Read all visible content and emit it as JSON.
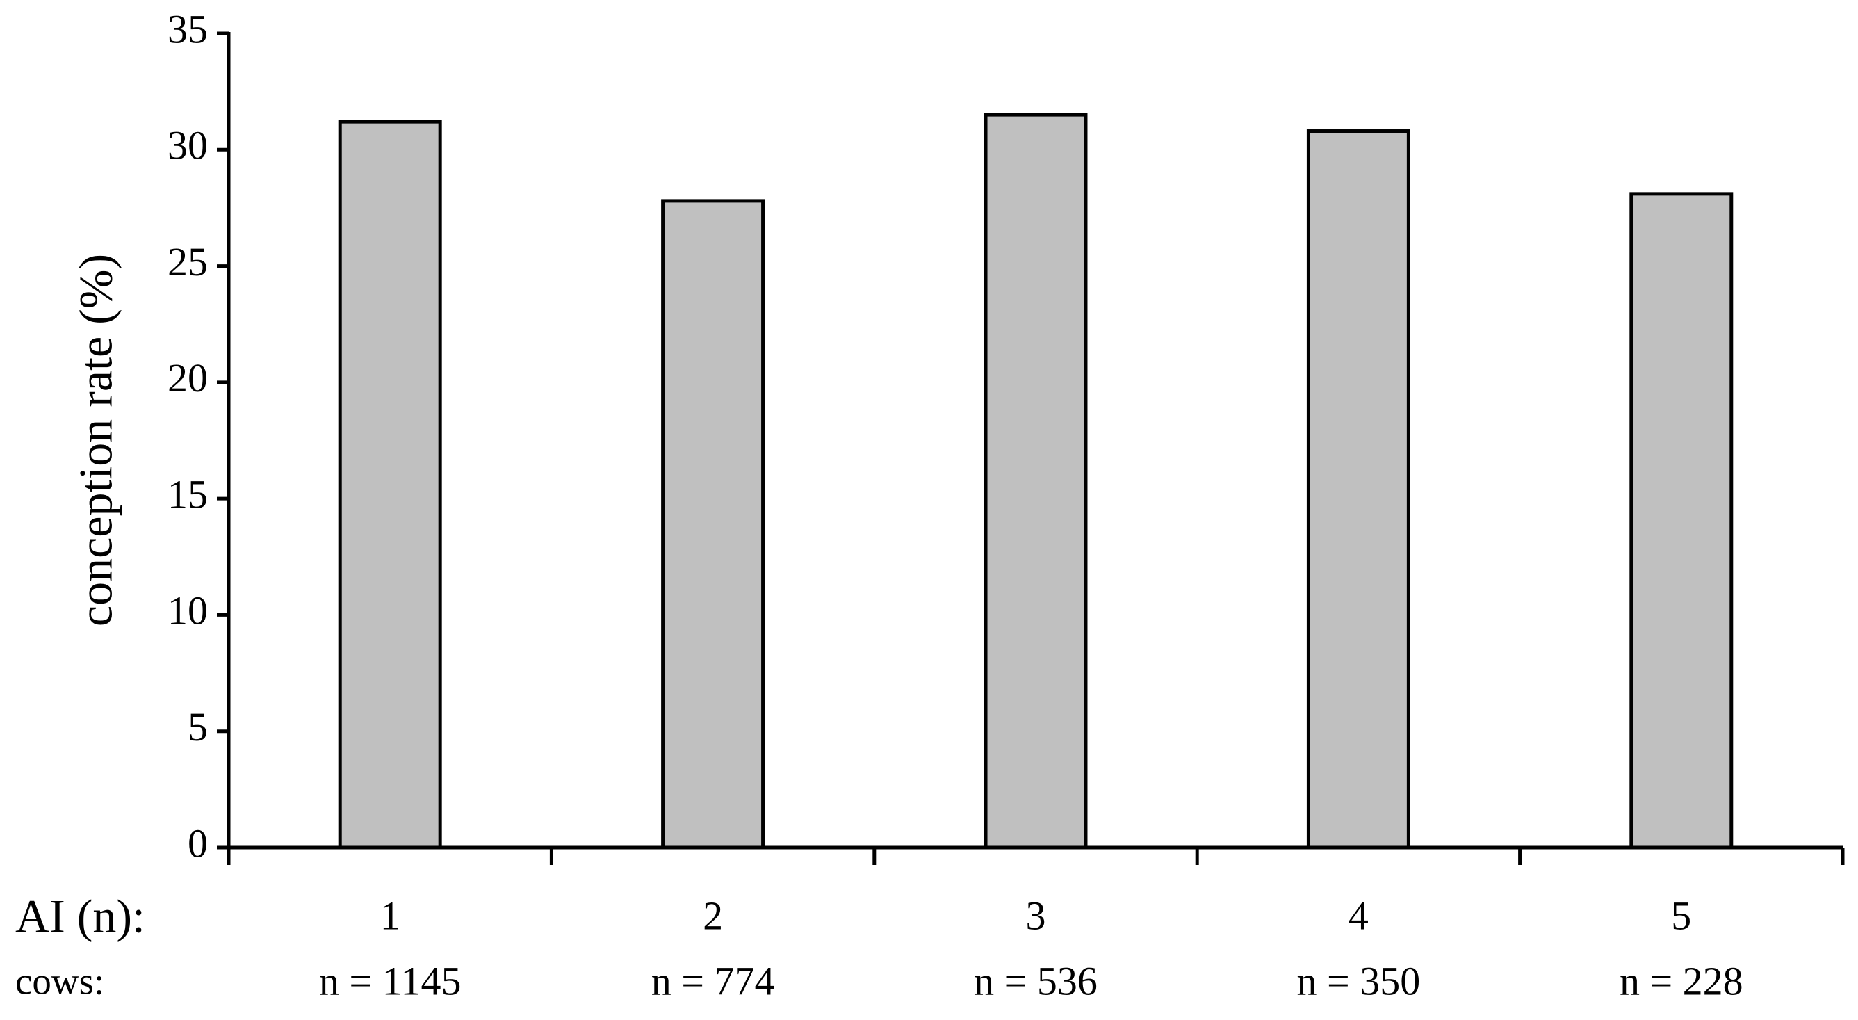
{
  "chart_data": {
    "type": "bar",
    "y_label": "conception rate (%)",
    "x_row_label": "AI (n):",
    "sublabel_row_label": "cows:",
    "categories": [
      "1",
      "2",
      "3",
      "4",
      "5"
    ],
    "category_sublabels": [
      "n = 1145",
      "n = 774",
      "n = 536",
      "n = 350",
      "n = 228"
    ],
    "values": [
      31.2,
      27.8,
      31.5,
      30.8,
      28.1
    ],
    "color": "#c0c0c0",
    "ylim": [
      0,
      35
    ],
    "yticks": [
      0,
      5,
      10,
      15,
      20,
      25,
      30,
      35
    ],
    "grid": false
  }
}
